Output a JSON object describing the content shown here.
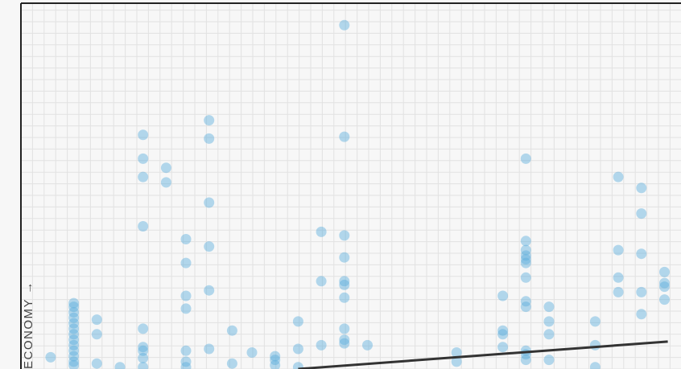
{
  "chart_data": {
    "type": "scatter",
    "title": "",
    "xlabel": "",
    "ylabel": "ECONOMY →",
    "grid": true,
    "colors": {
      "point": "#5aaedc",
      "axis": "#222222",
      "grid": "#e2e2e2",
      "trendline": "#333333"
    },
    "xlim": [
      0,
      100
    ],
    "ylim": [
      0,
      100
    ],
    "points": [
      [
        4.5,
        3.2
      ],
      [
        8.0,
        18.0
      ],
      [
        8.0,
        17.0
      ],
      [
        8.0,
        15.5
      ],
      [
        8.0,
        14.0
      ],
      [
        8.0,
        12.5
      ],
      [
        8.0,
        11.0
      ],
      [
        8.0,
        9.5
      ],
      [
        8.0,
        8.0
      ],
      [
        8.0,
        6.5
      ],
      [
        8.0,
        5.0
      ],
      [
        8.0,
        3.5
      ],
      [
        8.0,
        2.0
      ],
      [
        8.0,
        1.0
      ],
      [
        11.5,
        13.5
      ],
      [
        11.5,
        9.5
      ],
      [
        11.5,
        1.5
      ],
      [
        15.0,
        0.5
      ],
      [
        18.5,
        64.0
      ],
      [
        18.5,
        57.5
      ],
      [
        18.5,
        52.5
      ],
      [
        18.5,
        39.0
      ],
      [
        18.5,
        11.0
      ],
      [
        18.5,
        6.0
      ],
      [
        18.5,
        5.0
      ],
      [
        18.5,
        3.0
      ],
      [
        18.5,
        0.5
      ],
      [
        22.0,
        55.0
      ],
      [
        22.0,
        51.0
      ],
      [
        25.0,
        35.5
      ],
      [
        25.0,
        29.0
      ],
      [
        25.0,
        20.0
      ],
      [
        25.0,
        16.5
      ],
      [
        25.0,
        5.0
      ],
      [
        25.0,
        2.0
      ],
      [
        25.0,
        0.5
      ],
      [
        28.5,
        68.0
      ],
      [
        28.5,
        63.0
      ],
      [
        28.5,
        45.5
      ],
      [
        28.5,
        33.5
      ],
      [
        28.5,
        21.5
      ],
      [
        28.5,
        5.5
      ],
      [
        32.0,
        10.5
      ],
      [
        32.0,
        1.5
      ],
      [
        35.0,
        4.5
      ],
      [
        38.5,
        3.5
      ],
      [
        38.5,
        2.5
      ],
      [
        38.5,
        1.0
      ],
      [
        42.0,
        13.0
      ],
      [
        42.0,
        5.5
      ],
      [
        42.0,
        0.5
      ],
      [
        45.5,
        37.5
      ],
      [
        45.5,
        24.0
      ],
      [
        45.5,
        6.5
      ],
      [
        49.0,
        94.0
      ],
      [
        49.0,
        63.5
      ],
      [
        49.0,
        36.5
      ],
      [
        49.0,
        30.5
      ],
      [
        49.0,
        24.0
      ],
      [
        49.0,
        23.0
      ],
      [
        49.0,
        19.5
      ],
      [
        49.0,
        11.0
      ],
      [
        49.0,
        8.0
      ],
      [
        49.0,
        7.0
      ],
      [
        52.5,
        6.5
      ],
      [
        66.0,
        4.5
      ],
      [
        66.0,
        2.0
      ],
      [
        73.0,
        20.0
      ],
      [
        73.0,
        10.5
      ],
      [
        73.0,
        9.5
      ],
      [
        73.0,
        6.0
      ],
      [
        76.5,
        57.5
      ],
      [
        76.5,
        35.0
      ],
      [
        76.5,
        32.5
      ],
      [
        76.5,
        31.0
      ],
      [
        76.5,
        30.0
      ],
      [
        76.5,
        29.0
      ],
      [
        76.5,
        25.0
      ],
      [
        76.5,
        18.5
      ],
      [
        76.5,
        17.0
      ],
      [
        76.5,
        5.0
      ],
      [
        76.5,
        4.0
      ],
      [
        76.5,
        2.5
      ],
      [
        80.0,
        17.0
      ],
      [
        80.0,
        13.0
      ],
      [
        80.0,
        9.5
      ],
      [
        80.0,
        2.5
      ],
      [
        87.0,
        13.0
      ],
      [
        87.0,
        6.5
      ],
      [
        87.0,
        0.5
      ],
      [
        90.5,
        52.5
      ],
      [
        90.5,
        32.5
      ],
      [
        90.5,
        25.0
      ],
      [
        90.5,
        21.0
      ],
      [
        94.0,
        49.5
      ],
      [
        94.0,
        42.5
      ],
      [
        94.0,
        31.5
      ],
      [
        94.0,
        21.0
      ],
      [
        94.0,
        15.0
      ],
      [
        97.5,
        26.5
      ],
      [
        97.5,
        23.5
      ],
      [
        97.5,
        22.5
      ],
      [
        97.5,
        19.0
      ]
    ],
    "trendline": [
      [
        42.0,
        0.0
      ],
      [
        98.0,
        7.5
      ]
    ]
  }
}
